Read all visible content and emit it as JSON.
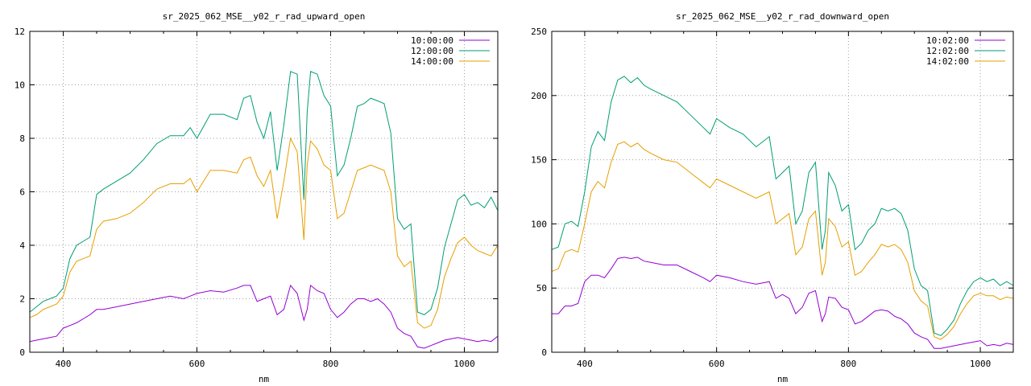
{
  "chart_data": [
    {
      "type": "line",
      "title": "sr_2025_062_MSE__y02_r_rad_upward_open",
      "xlabel": "nm",
      "ylabel": "",
      "xlim": [
        350,
        1050
      ],
      "ylim": [
        0,
        12
      ],
      "xticks": [
        400,
        600,
        800,
        1000
      ],
      "yticks": [
        0,
        2,
        4,
        6,
        8,
        10,
        12
      ],
      "grid": true,
      "legend_position": "top-right",
      "series": [
        {
          "name": "10:00:00",
          "color": "#9400d3",
          "x": [
            350,
            360,
            370,
            380,
            390,
            400,
            410,
            420,
            440,
            450,
            460,
            480,
            500,
            520,
            540,
            560,
            580,
            590,
            600,
            620,
            640,
            660,
            670,
            680,
            690,
            700,
            710,
            720,
            730,
            740,
            750,
            760,
            765,
            770,
            780,
            790,
            800,
            810,
            820,
            830,
            840,
            850,
            860,
            870,
            880,
            890,
            900,
            910,
            920,
            930,
            940,
            950,
            960,
            970,
            980,
            990,
            1000,
            1010,
            1020,
            1030,
            1040,
            1050
          ],
          "y": [
            0.4,
            0.45,
            0.5,
            0.55,
            0.6,
            0.9,
            1.0,
            1.1,
            1.4,
            1.6,
            1.6,
            1.7,
            1.8,
            1.9,
            2.0,
            2.1,
            2.0,
            2.1,
            2.2,
            2.3,
            2.25,
            2.4,
            2.5,
            2.5,
            1.9,
            2.0,
            2.1,
            1.4,
            1.6,
            2.5,
            2.2,
            1.2,
            1.6,
            2.5,
            2.3,
            2.2,
            1.6,
            1.3,
            1.5,
            1.8,
            2.0,
            2.0,
            1.9,
            2.0,
            1.8,
            1.5,
            0.9,
            0.7,
            0.6,
            0.2,
            0.15,
            0.25,
            0.35,
            0.45,
            0.5,
            0.55,
            0.5,
            0.45,
            0.4,
            0.45,
            0.4,
            0.6
          ]
        },
        {
          "name": "12:00:00",
          "color": "#009e73",
          "x": [
            350,
            360,
            370,
            380,
            390,
            400,
            410,
            420,
            440,
            450,
            460,
            480,
            500,
            520,
            540,
            560,
            580,
            590,
            600,
            620,
            640,
            660,
            670,
            680,
            690,
            700,
            710,
            720,
            730,
            740,
            750,
            760,
            765,
            770,
            780,
            790,
            800,
            810,
            820,
            830,
            840,
            850,
            860,
            870,
            880,
            890,
            900,
            910,
            920,
            930,
            940,
            950,
            960,
            970,
            980,
            990,
            1000,
            1010,
            1020,
            1030,
            1040,
            1050
          ],
          "y": [
            1.5,
            1.7,
            1.9,
            2.0,
            2.1,
            2.4,
            3.5,
            4.0,
            4.3,
            5.9,
            6.1,
            6.4,
            6.7,
            7.2,
            7.8,
            8.1,
            8.1,
            8.4,
            8.0,
            8.9,
            8.9,
            8.7,
            9.5,
            9.6,
            8.6,
            8.0,
            9.0,
            6.8,
            8.5,
            10.5,
            10.4,
            5.7,
            9.0,
            10.5,
            10.4,
            9.6,
            9.2,
            6.6,
            7.0,
            8.0,
            9.2,
            9.3,
            9.5,
            9.4,
            9.3,
            8.2,
            5.0,
            4.6,
            4.8,
            1.5,
            1.4,
            1.6,
            2.4,
            3.9,
            4.8,
            5.7,
            5.9,
            5.5,
            5.6,
            5.4,
            5.8,
            5.3
          ]
        },
        {
          "name": "14:00:00",
          "color": "#e69f00",
          "x": [
            350,
            360,
            370,
            380,
            390,
            400,
            410,
            420,
            440,
            450,
            460,
            480,
            500,
            520,
            540,
            560,
            580,
            590,
            600,
            620,
            640,
            660,
            670,
            680,
            690,
            700,
            710,
            720,
            730,
            740,
            750,
            760,
            765,
            770,
            780,
            790,
            800,
            810,
            820,
            830,
            840,
            850,
            860,
            870,
            880,
            890,
            900,
            910,
            920,
            930,
            940,
            950,
            960,
            970,
            980,
            990,
            1000,
            1010,
            1020,
            1030,
            1040,
            1050
          ],
          "y": [
            1.3,
            1.4,
            1.6,
            1.7,
            1.8,
            2.1,
            3.0,
            3.4,
            3.6,
            4.6,
            4.9,
            5.0,
            5.2,
            5.6,
            6.1,
            6.3,
            6.3,
            6.5,
            6.0,
            6.8,
            6.8,
            6.7,
            7.2,
            7.3,
            6.6,
            6.2,
            6.8,
            5.0,
            6.4,
            8.0,
            7.5,
            4.2,
            7.0,
            7.9,
            7.6,
            7.0,
            6.8,
            5.0,
            5.2,
            6.0,
            6.8,
            6.9,
            7.0,
            6.9,
            6.8,
            6.0,
            3.6,
            3.2,
            3.4,
            1.1,
            0.9,
            1.0,
            1.6,
            2.8,
            3.5,
            4.1,
            4.3,
            4.0,
            3.8,
            3.7,
            3.6,
            4.0
          ]
        }
      ]
    },
    {
      "type": "line",
      "title": "sr_2025_062_MSE__y02_r_rad_downward_open",
      "xlabel": "nm",
      "ylabel": "",
      "xlim": [
        350,
        1050
      ],
      "ylim": [
        0,
        250
      ],
      "xticks": [
        400,
        600,
        800,
        1000
      ],
      "yticks": [
        0,
        50,
        100,
        150,
        200,
        250
      ],
      "grid": true,
      "legend_position": "top-right",
      "series": [
        {
          "name": "10:02:00",
          "color": "#9400d3",
          "x": [
            350,
            360,
            370,
            380,
            390,
            400,
            410,
            420,
            430,
            440,
            450,
            460,
            470,
            480,
            490,
            500,
            520,
            540,
            560,
            580,
            590,
            600,
            620,
            640,
            660,
            680,
            690,
            700,
            710,
            720,
            730,
            740,
            750,
            760,
            765,
            770,
            780,
            790,
            800,
            810,
            820,
            830,
            840,
            850,
            860,
            870,
            880,
            890,
            900,
            910,
            920,
            930,
            940,
            950,
            960,
            970,
            980,
            990,
            1000,
            1010,
            1020,
            1030,
            1040,
            1050
          ],
          "y": [
            30,
            30,
            36,
            36,
            38,
            55,
            60,
            60,
            58,
            65,
            73,
            74,
            73,
            74,
            71,
            70,
            68,
            68,
            63,
            58,
            55,
            60,
            58,
            55,
            53,
            55,
            42,
            45,
            42,
            30,
            35,
            46,
            48,
            24,
            30,
            43,
            42,
            35,
            33,
            22,
            24,
            28,
            32,
            33,
            32,
            28,
            26,
            22,
            15,
            12,
            10,
            3,
            3,
            4,
            5,
            6,
            7,
            8,
            9,
            5,
            6,
            5,
            7,
            6
          ]
        },
        {
          "name": "12:02:00",
          "color": "#009e73",
          "x": [
            350,
            360,
            370,
            380,
            390,
            400,
            410,
            420,
            430,
            440,
            450,
            460,
            470,
            480,
            490,
            500,
            520,
            540,
            560,
            580,
            590,
            600,
            620,
            640,
            660,
            680,
            690,
            700,
            710,
            720,
            730,
            740,
            750,
            760,
            765,
            770,
            780,
            790,
            800,
            810,
            820,
            830,
            840,
            850,
            860,
            870,
            880,
            890,
            900,
            910,
            920,
            930,
            940,
            950,
            960,
            970,
            980,
            990,
            1000,
            1010,
            1020,
            1030,
            1040,
            1050
          ],
          "y": [
            80,
            82,
            100,
            102,
            98,
            125,
            160,
            172,
            165,
            195,
            212,
            215,
            210,
            214,
            208,
            205,
            200,
            195,
            185,
            175,
            170,
            182,
            175,
            170,
            160,
            168,
            135,
            140,
            145,
            100,
            110,
            140,
            148,
            80,
            95,
            140,
            130,
            110,
            115,
            80,
            85,
            95,
            100,
            112,
            110,
            112,
            108,
            95,
            65,
            52,
            48,
            15,
            13,
            18,
            25,
            38,
            48,
            55,
            58,
            55,
            57,
            52,
            55,
            52
          ]
        },
        {
          "name": "14:02:00",
          "color": "#e69f00",
          "x": [
            350,
            360,
            370,
            380,
            390,
            400,
            410,
            420,
            430,
            440,
            450,
            460,
            470,
            480,
            490,
            500,
            520,
            540,
            560,
            580,
            590,
            600,
            620,
            640,
            660,
            680,
            690,
            700,
            710,
            720,
            730,
            740,
            750,
            760,
            765,
            770,
            780,
            790,
            800,
            810,
            820,
            830,
            840,
            850,
            860,
            870,
            880,
            890,
            900,
            910,
            920,
            930,
            940,
            950,
            960,
            970,
            980,
            990,
            1000,
            1010,
            1020,
            1030,
            1040,
            1050
          ],
          "y": [
            63,
            65,
            78,
            80,
            78,
            100,
            125,
            133,
            128,
            148,
            162,
            164,
            160,
            163,
            158,
            155,
            150,
            148,
            140,
            132,
            128,
            135,
            130,
            125,
            120,
            125,
            100,
            104,
            108,
            76,
            82,
            104,
            110,
            60,
            70,
            104,
            98,
            82,
            86,
            60,
            63,
            70,
            76,
            84,
            82,
            84,
            80,
            70,
            48,
            40,
            36,
            12,
            10,
            14,
            20,
            30,
            38,
            44,
            46,
            44,
            44,
            41,
            43,
            42
          ]
        }
      ]
    }
  ]
}
